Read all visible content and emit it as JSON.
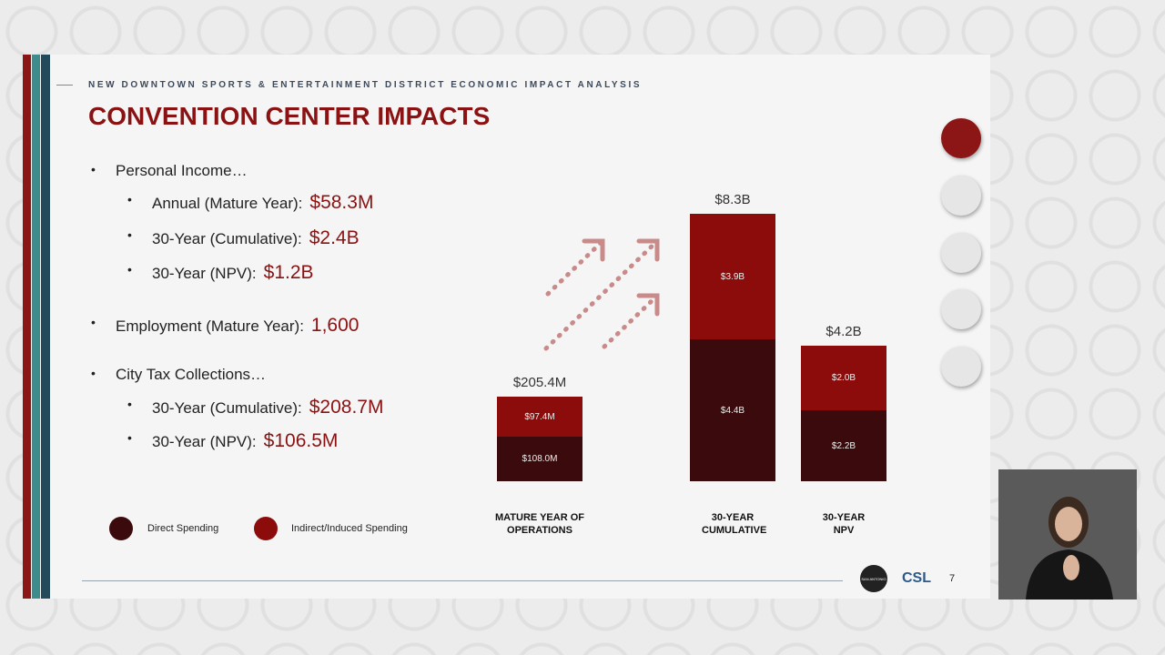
{
  "header": {
    "kicker": "NEW DOWNTOWN SPORTS & ENTERTAINMENT DISTRICT ECONOMIC IMPACT ANALYSIS",
    "title": "CONVENTION CENTER IMPACTS"
  },
  "bullets": [
    {
      "text": "Personal Income…",
      "sub": [
        {
          "label": "Annual (Mature Year):",
          "value": "$58.3M"
        },
        {
          "label": "30-Year (Cumulative):",
          "value": "$2.4B"
        },
        {
          "label": "30-Year (NPV):",
          "value": "$1.2B"
        }
      ]
    },
    {
      "text": "Employment (Mature Year):",
      "value": "1,600"
    },
    {
      "text": "City Tax Collections…",
      "sub": [
        {
          "label": "30-Year (Cumulative):",
          "value": "$208.7M"
        },
        {
          "label": "30-Year (NPV):",
          "value": "$106.5M"
        }
      ]
    }
  ],
  "chart_data": [
    {
      "type": "stacked_bar",
      "categories": [
        "MATURE YEAR OF OPERATIONS"
      ],
      "total_labels": [
        "$205.4M"
      ],
      "series": [
        {
          "name": "Direct Spending",
          "color": "#3b0a0c",
          "values": [
            108000000
          ],
          "value_labels": [
            "$108.0M"
          ]
        },
        {
          "name": "Indirect/Induced Spending",
          "color": "#8c0b0b",
          "values": [
            97400000
          ],
          "value_labels": [
            "$97.4M"
          ]
        }
      ]
    },
    {
      "type": "stacked_bar",
      "categories": [
        "30-YEAR CUMULATIVE",
        "30-YEAR NPV"
      ],
      "total_labels": [
        "$8.3B",
        "$4.2B"
      ],
      "series": [
        {
          "color": "#3b0a0c",
          "values": [
            4400000000,
            2200000000
          ],
          "value_labels": [
            "$4.4B",
            "$2.2B"
          ]
        },
        {
          "color": "#8c0b0b",
          "values": [
            3900000000,
            2000000000
          ],
          "value_labels": [
            "$3.9B",
            "$2.0B"
          ]
        }
      ]
    }
  ],
  "footer": {
    "logo": "SAN ANTONIO",
    "brand": "CSL",
    "page": "7"
  }
}
